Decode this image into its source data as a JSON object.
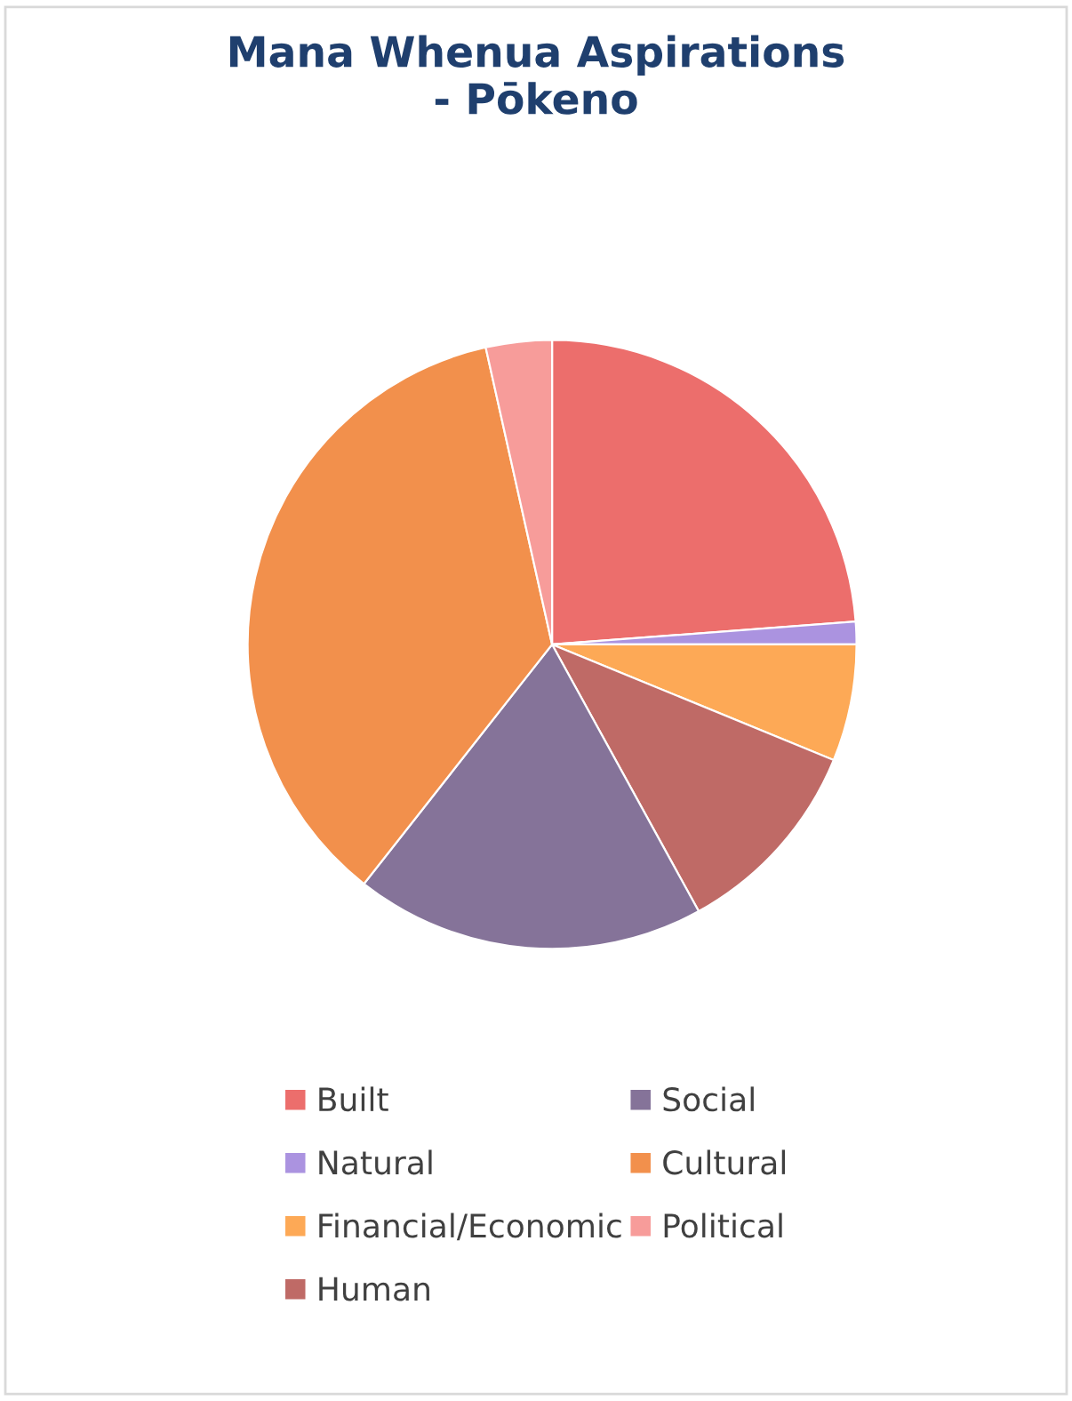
{
  "chart_data": {
    "type": "pie",
    "title": "Mana Whenua Aspirations\n- Pōkeno",
    "categories": [
      "Built",
      "Natural",
      "Financial/Economic",
      "Human",
      "Social",
      "Cultural",
      "Political"
    ],
    "values": [
      23.8,
      1.2,
      6.2,
      10.8,
      18.6,
      35.9,
      3.5
    ],
    "colors": [
      "#ec6e6c",
      "#ab93e0",
      "#fda956",
      "#bf6a66",
      "#857399",
      "#f2904c",
      "#f79c9a"
    ],
    "legend": "bottom"
  }
}
